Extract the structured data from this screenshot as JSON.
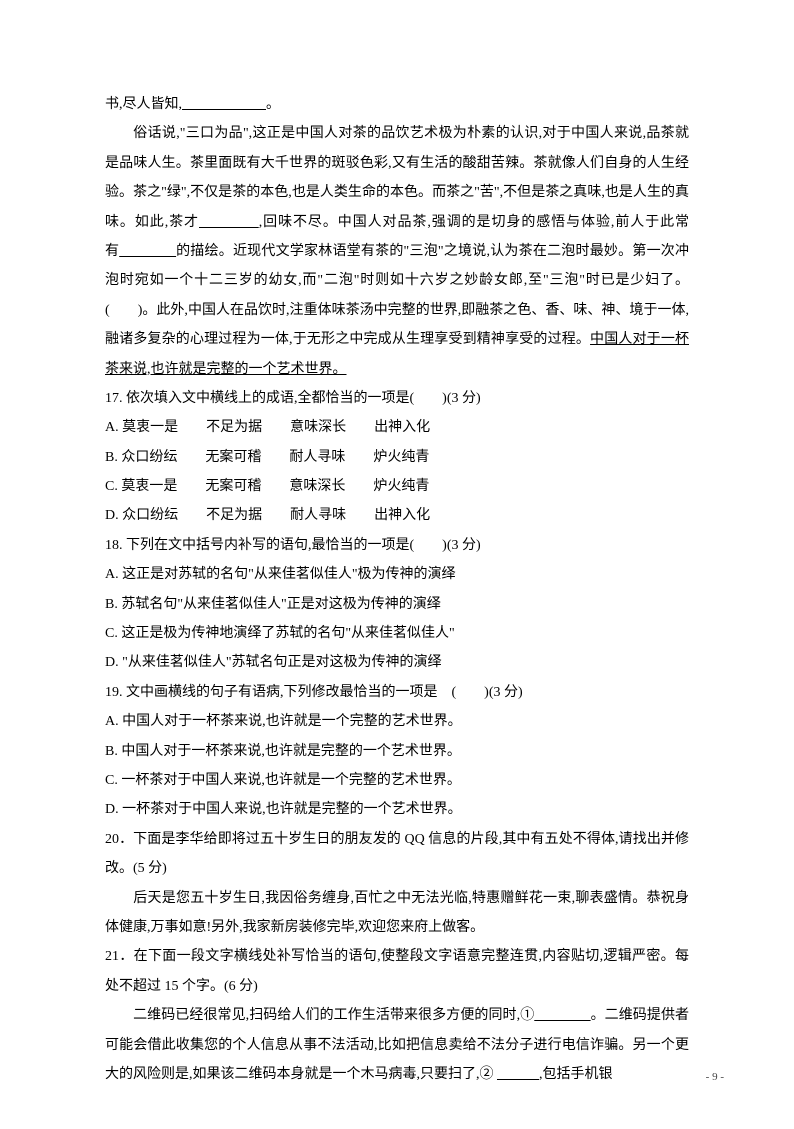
{
  "fragment_top": "书,尽人皆知,",
  "fragment_top_end": "。",
  "passage_p1_a": "俗话说,\"三口为品\",这正是中国人对茶的品饮艺术极为朴素的认识,对于中国人来说,品茶就是品味人生。茶里面既有大千世界的斑驳色彩,又有生活的酸甜苦辣。茶就像人们自身的人生经验。茶之\"绿\",不仅是茶的本色,也是人类生命的本色。而茶之\"苦\",不但是茶之真味,也是人生的真味。如此,茶才",
  "passage_p1_b": ",回味不尽。中国人对品茶,强调的是切身的感悟与体验,前人于此常有",
  "passage_p1_c": "的描绘。近现代文学家林语堂有茶的\"三泡\"之境说,认为茶在二泡时最妙。第一次冲泡时宛如一个十二三岁的幼女,而\"二泡\"时则如十六岁之妙龄女郎,至\"三泡\"时已是少妇了。(　　)。此外,中国人在品饮时,注重体味茶汤中完整的世界,即融茶之色、香、味、神、境于一体,融诸多复杂的心理过程为一体,于无形之中完成从生理享受到精神享受的过程。",
  "passage_underline": "中国人对于一杯茶来说,也许就是完整的一个艺术世界。",
  "q17": "17. 依次填入文中横线上的成语,全都恰当的一项是(　　)(3 分)",
  "q17_a": "A. 莫衷一是　　不足为据　　意味深长　　出神入化",
  "q17_b": "B. 众口纷纭　　无案可稽　　耐人寻味　　炉火纯青",
  "q17_c": "C. 莫衷一是　　无案可稽　　意味深长　　炉火纯青",
  "q17_d": "D. 众口纷纭　　不足为据　　耐人寻味　　出神入化",
  "q18": "18. 下列在文中括号内补写的语句,最恰当的一项是(　　)(3 分)",
  "q18_a": "A. 这正是对苏轼的名句\"从来佳茗似佳人\"极为传神的演绎",
  "q18_b": "B. 苏轼名句\"从来佳茗似佳人\"正是对这极为传神的演绎",
  "q18_c": "C. 这正是极为传神地演绎了苏轼的名句\"从来佳茗似佳人\"",
  "q18_d": "D. \"从来佳茗似佳人\"苏轼名句正是对这极为传神的演绎",
  "q19": "19. 文中画横线的句子有语病,下列修改最恰当的一项是　(　　)(3 分)",
  "q19_a": "A. 中国人对于一杯茶来说,也许就是一个完整的艺术世界。",
  "q19_b": "B. 中国人对于一杯茶来说,也许就是完整的一个艺术世界。",
  "q19_c": "C. 一杯茶对于中国人来说,也许就是一个完整的艺术世界。",
  "q19_d": "D. 一杯茶对于中国人来说,也许就是完整的一个艺术世界。",
  "q20": "20．下面是李华给即将过五十岁生日的朋友发的 QQ 信息的片段,其中有五处不得体,请找出并修改。(5 分)",
  "q20_body": "后天是您五十岁生日,我因俗务缠身,百忙之中无法光临,特惠赠鲜花一束,聊表盛情。恭祝身体健康,万事如意!另外,我家新房装修完毕,欢迎您来府上做客。",
  "q21": "21．在下面一段文字横线处补写恰当的语句,使整段文字语意完整连贯,内容贴切,逻辑严密。每处不超过 15 个字。(6 分)",
  "q21_body_a": "二维码已经很常见,扫码给人们的工作生活带来很多方便的同时,①",
  "q21_body_b": "。二维码提供者可能会借此收集您的个人信息从事不法活动,比如把信息卖给不法分子进行电信诈骗。另一个更大的风险则是,如果该二维码本身就是一个木马病毒,只要扫了,② ",
  "q21_body_c": ",包括手机银",
  "page_num": "- 9 -",
  "blank_long": "　　　　　　",
  "blank_med": "　　　　",
  "blank_short": "　　　"
}
